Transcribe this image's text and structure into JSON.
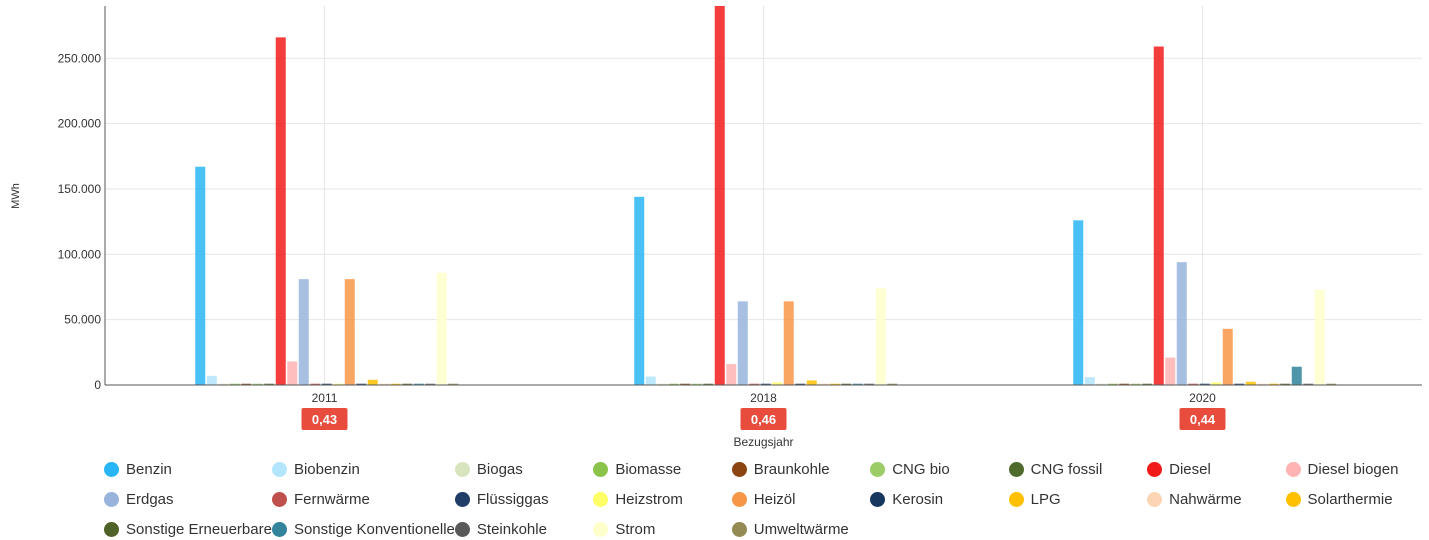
{
  "chart_data": {
    "type": "bar",
    "title": "",
    "xlabel": "Bezugsjahr",
    "ylabel": "MWh",
    "ylim": [
      0,
      290000
    ],
    "y_ticks": [
      0,
      50000,
      100000,
      150000,
      200000,
      250000
    ],
    "y_tick_labels": [
      "0",
      "50.000",
      "100.000",
      "150.000",
      "200.000",
      "250.000"
    ],
    "categories": [
      "2011",
      "2018",
      "2020"
    ],
    "category_badges": [
      "0,43",
      "0,46",
      "0,44"
    ],
    "badge_color": "#e74c3c",
    "grid": true,
    "legend_position": "bottom",
    "series": [
      {
        "name": "Benzin",
        "color": "#29b6f6",
        "values": [
          167000,
          144000,
          126000
        ]
      },
      {
        "name": "Biobenzin",
        "color": "#b3e5fc",
        "values": [
          7000,
          6500,
          6000
        ]
      },
      {
        "name": "Biogas",
        "color": "#d7e4bd",
        "values": [
          1000,
          1000,
          1000
        ]
      },
      {
        "name": "Biomasse",
        "color": "#8bc34a",
        "values": [
          1000,
          1000,
          1000
        ]
      },
      {
        "name": "Braunkohle",
        "color": "#8b4513",
        "values": [
          1000,
          1000,
          1000
        ]
      },
      {
        "name": "CNG bio",
        "color": "#9ccc65",
        "values": [
          1000,
          1000,
          1000
        ]
      },
      {
        "name": "CNG fossil",
        "color": "#4e6b2d",
        "values": [
          1000,
          1000,
          1000
        ]
      },
      {
        "name": "Diesel",
        "color": "#f21b1b",
        "values": [
          266000,
          290000,
          259000
        ]
      },
      {
        "name": "Diesel biogen",
        "color": "#ffb3b3",
        "values": [
          18000,
          16000,
          21000
        ]
      },
      {
        "name": "Erdgas",
        "color": "#98b4dc",
        "values": [
          81000,
          64000,
          94000
        ]
      },
      {
        "name": "Fernwärme",
        "color": "#c0504d",
        "values": [
          1000,
          1000,
          1000
        ]
      },
      {
        "name": "Flüssiggas",
        "color": "#1f3d66",
        "values": [
          1000,
          1000,
          1000
        ]
      },
      {
        "name": "Heizstrom",
        "color": "#ffff66",
        "values": [
          1000,
          2000,
          2000
        ]
      },
      {
        "name": "Heizöl",
        "color": "#f79646",
        "values": [
          81000,
          64000,
          43000
        ]
      },
      {
        "name": "Kerosin",
        "color": "#17375e",
        "values": [
          1000,
          1000,
          1000
        ]
      },
      {
        "name": "LPG",
        "color": "#ffc000",
        "values": [
          4000,
          3500,
          2500
        ]
      },
      {
        "name": "Nahwärme",
        "color": "#fcd5b4",
        "values": [
          1000,
          1000,
          1000
        ]
      },
      {
        "name": "Solarthermie",
        "color": "#ffc000",
        "values": [
          1000,
          1000,
          1000
        ]
      },
      {
        "name": "Sonstige Erneuerbare",
        "color": "#4f6228",
        "values": [
          1000,
          1000,
          1000
        ]
      },
      {
        "name": "Sonstige Konventionelle",
        "color": "#31849b",
        "values": [
          1000,
          1000,
          14000
        ]
      },
      {
        "name": "Steinkohle",
        "color": "#595959",
        "values": [
          1000,
          1000,
          1000
        ]
      },
      {
        "name": "Strom",
        "color": "#ffffcc",
        "values": [
          86000,
          74000,
          73000
        ]
      },
      {
        "name": "Umweltwärme",
        "color": "#948a54",
        "values": [
          1000,
          1000,
          1000
        ]
      }
    ]
  }
}
